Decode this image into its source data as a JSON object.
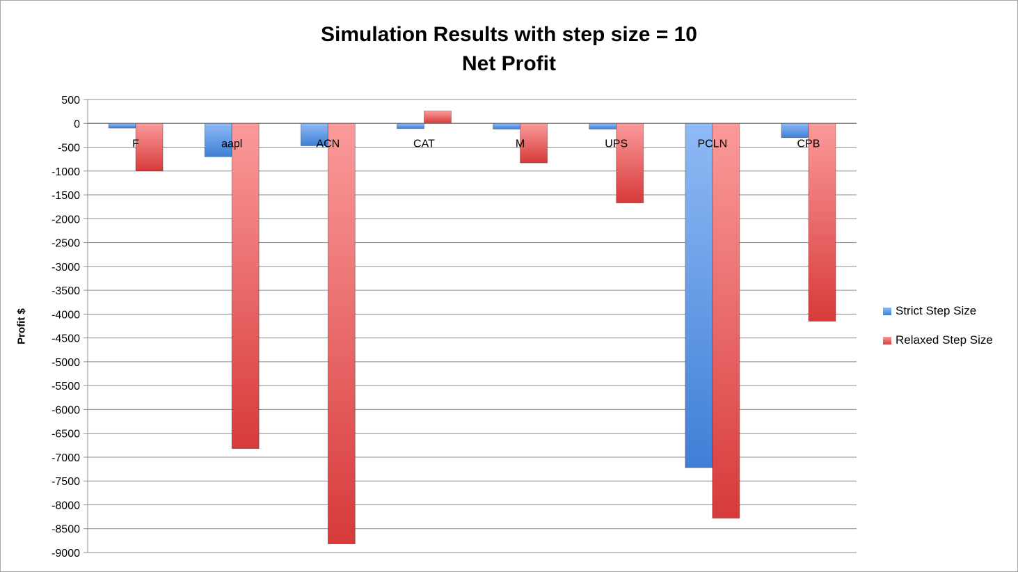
{
  "chart_data": {
    "type": "bar",
    "title": "Simulation Results with step size = 10",
    "subtitle": "Net Profit",
    "xlabel": "",
    "ylabel": "Profit $",
    "categories": [
      "F",
      "aapl",
      "ACN",
      "CAT",
      "M",
      "UPS",
      "PCLN",
      "CPB"
    ],
    "series": [
      {
        "name": "Strict Step Size",
        "color": "#4a86d8",
        "values": [
          -100,
          -700,
          -470,
          -110,
          -120,
          -120,
          -7220,
          -300
        ]
      },
      {
        "name": "Relaxed Step Size",
        "color": "#d94040",
        "values": [
          -1000,
          -6820,
          -8820,
          260,
          -830,
          -1670,
          -8280,
          -4150
        ]
      }
    ],
    "ylim": [
      -9000,
      500
    ],
    "yticks": [
      500,
      0,
      -500,
      -1000,
      -1500,
      -2000,
      -2500,
      -3000,
      -3500,
      -4000,
      -4500,
      -5000,
      -5500,
      -6000,
      -6500,
      -7000,
      -7500,
      -8000,
      -8500,
      -9000
    ],
    "grid": true,
    "legend_position": "right"
  }
}
